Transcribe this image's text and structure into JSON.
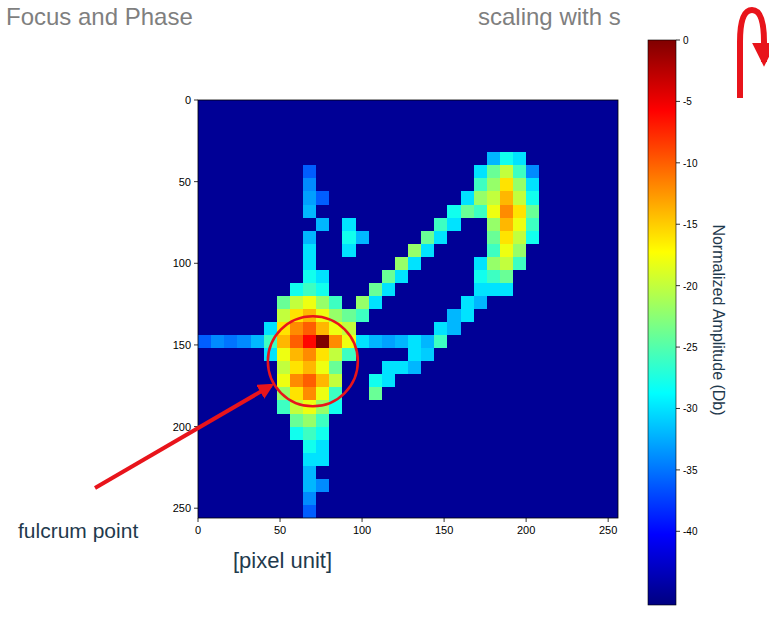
{
  "slide": {
    "title": "Focus and Phase",
    "subtitle": "scaling with s"
  },
  "chart_data": {
    "type": "heatmap",
    "xlabel": "[pixel unit]",
    "annotations": [
      {
        "text": "fulcrum point"
      }
    ],
    "xlim": [
      0,
      256
    ],
    "ylim": [
      256,
      0
    ],
    "xticks": [
      0,
      50,
      100,
      150,
      200,
      250
    ],
    "yticks": [
      0,
      50,
      100,
      150,
      200,
      250
    ],
    "colorbar": {
      "label": "Normalized Amplitude (Db)",
      "lim": [
        -46,
        0
      ],
      "ticks": [
        0,
        -5,
        -10,
        -15,
        -20,
        -25,
        -30,
        -35,
        -40
      ]
    },
    "z": [
      [
        -45,
        -45,
        -45,
        -45,
        -45,
        -45,
        -45,
        -45,
        -45,
        -45,
        -45,
        -45,
        -45,
        -45,
        -45,
        -45,
        -45,
        -45,
        -45,
        -45,
        -45,
        -45,
        -45,
        -45,
        -45,
        -45,
        -45,
        -45,
        -45,
        -45,
        -45,
        -45
      ],
      [
        -45,
        -45,
        -45,
        -45,
        -45,
        -45,
        -45,
        -45,
        -45,
        -45,
        -45,
        -45,
        -45,
        -45,
        -45,
        -45,
        -45,
        -45,
        -45,
        -45,
        -45,
        -45,
        -45,
        -45,
        -45,
        -45,
        -45,
        -45,
        -45,
        -45,
        -45,
        -45
      ],
      [
        -45,
        -45,
        -45,
        -45,
        -45,
        -45,
        -45,
        -45,
        -45,
        -45,
        -45,
        -45,
        -45,
        -45,
        -45,
        -45,
        -45,
        -45,
        -45,
        -45,
        -45,
        -45,
        -45,
        -45,
        -45,
        -45,
        -45,
        -45,
        -45,
        -45,
        -45,
        -45
      ],
      [
        -45,
        -45,
        -45,
        -45,
        -45,
        -45,
        -45,
        -45,
        -45,
        -45,
        -45,
        -45,
        -45,
        -45,
        -45,
        -45,
        -45,
        -45,
        -45,
        -45,
        -45,
        -45,
        -45,
        -45,
        -45,
        -45,
        -45,
        -45,
        -45,
        -45,
        -45,
        -45
      ],
      [
        -45,
        -45,
        -45,
        -45,
        -45,
        -45,
        -45,
        -45,
        -45,
        -45,
        -45,
        -45,
        -45,
        -45,
        -45,
        -45,
        -45,
        -45,
        -45,
        -45,
        -45,
        -45,
        -32,
        -28,
        -30,
        -45,
        -45,
        -45,
        -45,
        -45,
        -45,
        -45
      ],
      [
        -45,
        -45,
        -45,
        -45,
        -45,
        -45,
        -45,
        -45,
        -36,
        -45,
        -45,
        -45,
        -45,
        -45,
        -45,
        -45,
        -45,
        -45,
        -45,
        -45,
        -45,
        -30,
        -24,
        -20,
        -26,
        -34,
        -45,
        -45,
        -45,
        -45,
        -45,
        -45
      ],
      [
        -45,
        -45,
        -45,
        -45,
        -45,
        -45,
        -45,
        -45,
        -34,
        -45,
        -45,
        -45,
        -45,
        -45,
        -45,
        -45,
        -45,
        -45,
        -45,
        -45,
        -45,
        -26,
        -22,
        -16,
        -22,
        -30,
        -45,
        -45,
        -45,
        -45,
        -45,
        -45
      ],
      [
        -45,
        -45,
        -45,
        -45,
        -45,
        -45,
        -45,
        -45,
        -33,
        -36,
        -45,
        -45,
        -45,
        -45,
        -45,
        -45,
        -45,
        -45,
        -45,
        -45,
        -30,
        -22,
        -20,
        -14,
        -20,
        -28,
        -45,
        -45,
        -45,
        -45,
        -45,
        -45
      ],
      [
        -45,
        -45,
        -45,
        -45,
        -45,
        -45,
        -45,
        -45,
        -32,
        -45,
        -45,
        -45,
        -45,
        -45,
        -45,
        -45,
        -45,
        -45,
        -45,
        -28,
        -24,
        -26,
        -18,
        -12,
        -16,
        -24,
        -45,
        -45,
        -45,
        -45,
        -45,
        -45
      ],
      [
        -45,
        -45,
        -45,
        -45,
        -45,
        -45,
        -45,
        -45,
        -45,
        -32,
        -45,
        -30,
        -45,
        -45,
        -45,
        -45,
        -45,
        -45,
        -26,
        -30,
        -45,
        -45,
        -22,
        -14,
        -18,
        -26,
        -45,
        -45,
        -45,
        -45,
        -45,
        -45
      ],
      [
        -45,
        -45,
        -45,
        -45,
        -45,
        -45,
        -45,
        -45,
        -32,
        -45,
        -45,
        -28,
        -32,
        -45,
        -45,
        -45,
        -45,
        -24,
        -30,
        -45,
        -45,
        -45,
        -24,
        -16,
        -20,
        -28,
        -45,
        -45,
        -45,
        -45,
        -45,
        -45
      ],
      [
        -45,
        -45,
        -45,
        -45,
        -45,
        -45,
        -45,
        -45,
        -30,
        -45,
        -45,
        -30,
        -45,
        -45,
        -45,
        -45,
        -22,
        -30,
        -45,
        -45,
        -45,
        -45,
        -26,
        -18,
        -22,
        -45,
        -45,
        -45,
        -45,
        -45,
        -45,
        -45
      ],
      [
        -45,
        -45,
        -45,
        -45,
        -45,
        -45,
        -45,
        -45,
        -30,
        -45,
        -45,
        -45,
        -45,
        -45,
        -45,
        -22,
        -30,
        -45,
        -45,
        -45,
        -45,
        -30,
        -22,
        -20,
        -26,
        -45,
        -45,
        -45,
        -45,
        -45,
        -45,
        -45
      ],
      [
        -45,
        -45,
        -45,
        -45,
        -45,
        -45,
        -45,
        -45,
        -28,
        -30,
        -45,
        -45,
        -45,
        -45,
        -24,
        -30,
        -45,
        -45,
        -45,
        -45,
        -45,
        -28,
        -26,
        -24,
        -45,
        -45,
        -45,
        -45,
        -45,
        -45,
        -45,
        -45
      ],
      [
        -45,
        -45,
        -45,
        -45,
        -45,
        -45,
        -45,
        -28,
        -26,
        -28,
        -45,
        -45,
        -45,
        -24,
        -30,
        -45,
        -45,
        -45,
        -45,
        -45,
        -45,
        -30,
        -30,
        -30,
        -45,
        -45,
        -45,
        -45,
        -45,
        -45,
        -45,
        -45
      ],
      [
        -45,
        -45,
        -45,
        -45,
        -45,
        -45,
        -24,
        -20,
        -18,
        -22,
        -26,
        -45,
        -22,
        -30,
        -45,
        -45,
        -45,
        -45,
        -45,
        -45,
        -30,
        -32,
        -45,
        -45,
        -45,
        -45,
        -45,
        -45,
        -45,
        -45,
        -45,
        -45
      ],
      [
        -45,
        -45,
        -45,
        -45,
        -45,
        -45,
        -20,
        -16,
        -14,
        -18,
        -22,
        -24,
        -26,
        -45,
        -45,
        -45,
        -45,
        -45,
        -45,
        -32,
        -30,
        -45,
        -45,
        -45,
        -45,
        -45,
        -45,
        -45,
        -45,
        -45,
        -45,
        -45
      ],
      [
        -45,
        -45,
        -45,
        -45,
        -45,
        -30,
        -16,
        -12,
        -10,
        -14,
        -18,
        -20,
        -45,
        -45,
        -45,
        -45,
        -45,
        -45,
        -30,
        -32,
        -45,
        -45,
        -45,
        -45,
        -45,
        -45,
        -45,
        -45,
        -45,
        -45,
        -45,
        -45
      ],
      [
        -36,
        -34,
        -35,
        -34,
        -32,
        -26,
        -14,
        -10,
        -6,
        0,
        -12,
        -18,
        -30,
        -32,
        -33,
        -32,
        -30,
        -32,
        -26,
        -45,
        -45,
        -45,
        -45,
        -45,
        -45,
        -45,
        -45,
        -45,
        -45,
        -45,
        -45,
        -45
      ],
      [
        -45,
        -45,
        -45,
        -45,
        -45,
        -30,
        -18,
        -14,
        -12,
        -16,
        -20,
        -26,
        -45,
        -45,
        -45,
        -45,
        -30,
        -31,
        -45,
        -45,
        -45,
        -45,
        -45,
        -45,
        -45,
        -45,
        -45,
        -45,
        -45,
        -45,
        -45,
        -45
      ],
      [
        -45,
        -45,
        -45,
        -45,
        -45,
        -45,
        -20,
        -16,
        -14,
        -18,
        -24,
        -45,
        -45,
        -45,
        -30,
        -30,
        -32,
        -45,
        -45,
        -45,
        -45,
        -45,
        -45,
        -45,
        -45,
        -45,
        -45,
        -45,
        -45,
        -45,
        -45,
        -45
      ],
      [
        -45,
        -45,
        -45,
        -45,
        -45,
        -45,
        -18,
        -12,
        -10,
        -14,
        -20,
        -45,
        -45,
        -28,
        -30,
        -45,
        -45,
        -45,
        -45,
        -45,
        -45,
        -45,
        -45,
        -45,
        -45,
        -45,
        -45,
        -45,
        -45,
        -45,
        -45,
        -45
      ],
      [
        -45,
        -45,
        -45,
        -45,
        -45,
        -45,
        -22,
        -16,
        -12,
        -18,
        -26,
        -45,
        -45,
        -24,
        -45,
        -45,
        -45,
        -45,
        -45,
        -45,
        -45,
        -45,
        -45,
        -45,
        -45,
        -45,
        -45,
        -45,
        -45,
        -45,
        -45,
        -45
      ],
      [
        -45,
        -45,
        -45,
        -45,
        -45,
        -45,
        -26,
        -20,
        -18,
        -22,
        -28,
        -45,
        -45,
        -45,
        -45,
        -45,
        -45,
        -45,
        -45,
        -45,
        -45,
        -45,
        -45,
        -45,
        -45,
        -45,
        -45,
        -45,
        -45,
        -45,
        -45,
        -45
      ],
      [
        -45,
        -45,
        -45,
        -45,
        -45,
        -45,
        -45,
        -24,
        -22,
        -26,
        -45,
        -45,
        -45,
        -45,
        -45,
        -45,
        -45,
        -45,
        -45,
        -45,
        -45,
        -45,
        -45,
        -45,
        -45,
        -45,
        -45,
        -45,
        -45,
        -45,
        -45,
        -45
      ],
      [
        -45,
        -45,
        -45,
        -45,
        -45,
        -45,
        -45,
        -28,
        -26,
        -28,
        -45,
        -45,
        -45,
        -45,
        -45,
        -45,
        -45,
        -45,
        -45,
        -45,
        -45,
        -45,
        -45,
        -45,
        -45,
        -45,
        -45,
        -45,
        -45,
        -45,
        -45,
        -45
      ],
      [
        -45,
        -45,
        -45,
        -45,
        -45,
        -45,
        -45,
        -45,
        -28,
        -30,
        -45,
        -45,
        -45,
        -45,
        -45,
        -45,
        -45,
        -45,
        -45,
        -45,
        -45,
        -45,
        -45,
        -45,
        -45,
        -45,
        -45,
        -45,
        -45,
        -45,
        -45,
        -45
      ],
      [
        -45,
        -45,
        -45,
        -45,
        -45,
        -45,
        -45,
        -45,
        -30,
        -30,
        -45,
        -45,
        -45,
        -45,
        -45,
        -45,
        -45,
        -45,
        -45,
        -45,
        -45,
        -45,
        -45,
        -45,
        -45,
        -45,
        -45,
        -45,
        -45,
        -45,
        -45,
        -45
      ],
      [
        -45,
        -45,
        -45,
        -45,
        -45,
        -45,
        -45,
        -45,
        -32,
        -45,
        -45,
        -45,
        -45,
        -45,
        -45,
        -45,
        -45,
        -45,
        -45,
        -45,
        -45,
        -45,
        -45,
        -45,
        -45,
        -45,
        -45,
        -45,
        -45,
        -45,
        -45,
        -45
      ],
      [
        -45,
        -45,
        -45,
        -45,
        -45,
        -45,
        -45,
        -45,
        -32,
        -34,
        -45,
        -45,
        -45,
        -45,
        -45,
        -45,
        -45,
        -45,
        -45,
        -45,
        -45,
        -45,
        -45,
        -45,
        -45,
        -45,
        -45,
        -45,
        -45,
        -45,
        -45,
        -45
      ],
      [
        -45,
        -45,
        -45,
        -45,
        -45,
        -45,
        -45,
        -45,
        -34,
        -45,
        -45,
        -45,
        -45,
        -45,
        -45,
        -45,
        -45,
        -45,
        -45,
        -45,
        -45,
        -45,
        -45,
        -45,
        -45,
        -45,
        -45,
        -45,
        -45,
        -45,
        -45,
        -45
      ],
      [
        -45,
        -45,
        -45,
        -45,
        -45,
        -45,
        -45,
        -45,
        -36,
        -45,
        -45,
        -45,
        -45,
        -45,
        -45,
        -45,
        -45,
        -45,
        -45,
        -45,
        -45,
        -45,
        -45,
        -45,
        -45,
        -45,
        -45,
        -45,
        -45,
        -45,
        -45,
        -45
      ]
    ]
  }
}
